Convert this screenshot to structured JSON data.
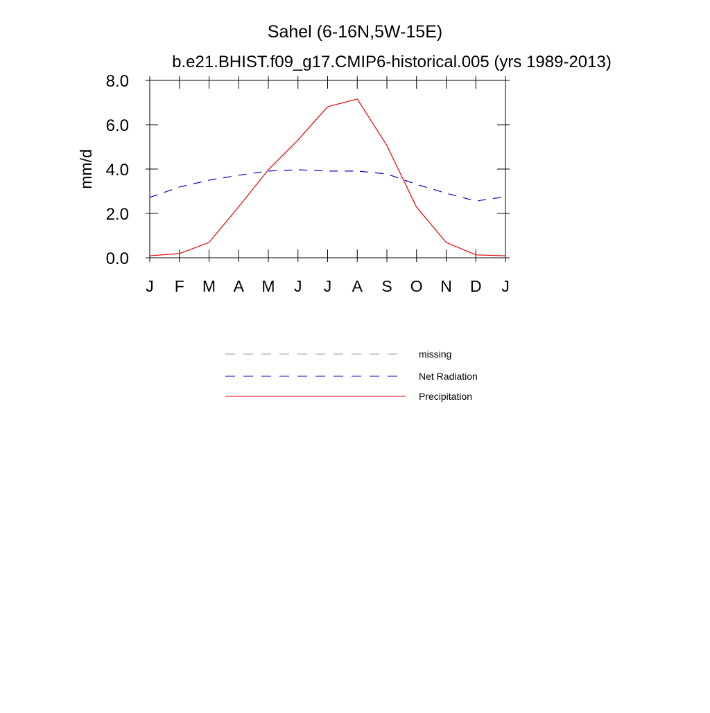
{
  "chart_data": {
    "type": "line",
    "title": "Sahel (6-16N,5W-15E)",
    "subtitle": "b.e21.BHIST.f09_g17.CMIP6-historical.005 (yrs 1989-2013)",
    "y_label": "mm/d",
    "categories": [
      "J",
      "F",
      "M",
      "A",
      "M",
      "J",
      "J",
      "A",
      "S",
      "O",
      "N",
      "D",
      "J"
    ],
    "ylim": [
      0,
      8
    ],
    "yticks": [
      {
        "value": 0,
        "label": "0.0"
      },
      {
        "value": 2,
        "label": "2.0"
      },
      {
        "value": 4,
        "label": "4.0"
      },
      {
        "value": 6,
        "label": "6.0"
      },
      {
        "value": 8,
        "label": "8.0"
      }
    ],
    "series": [
      {
        "name": "missing",
        "color": "#999999",
        "dashed": true,
        "values": [
          null,
          null,
          null,
          null,
          null,
          null,
          null,
          null,
          null,
          null,
          null,
          null,
          null
        ]
      },
      {
        "name": "Net Radiation",
        "color": "#0000cc",
        "dashed": true,
        "values": [
          2.72,
          3.19,
          3.5,
          3.72,
          3.91,
          3.97,
          3.91,
          3.91,
          3.78,
          3.31,
          2.91,
          2.56,
          2.75
        ]
      },
      {
        "name": "Precipitation",
        "color": "#ee0000",
        "dashed": false,
        "values": [
          0.09,
          0.19,
          0.69,
          2.3,
          3.97,
          5.31,
          6.81,
          7.16,
          5.06,
          2.28,
          0.69,
          0.13,
          0.09
        ]
      }
    ]
  }
}
